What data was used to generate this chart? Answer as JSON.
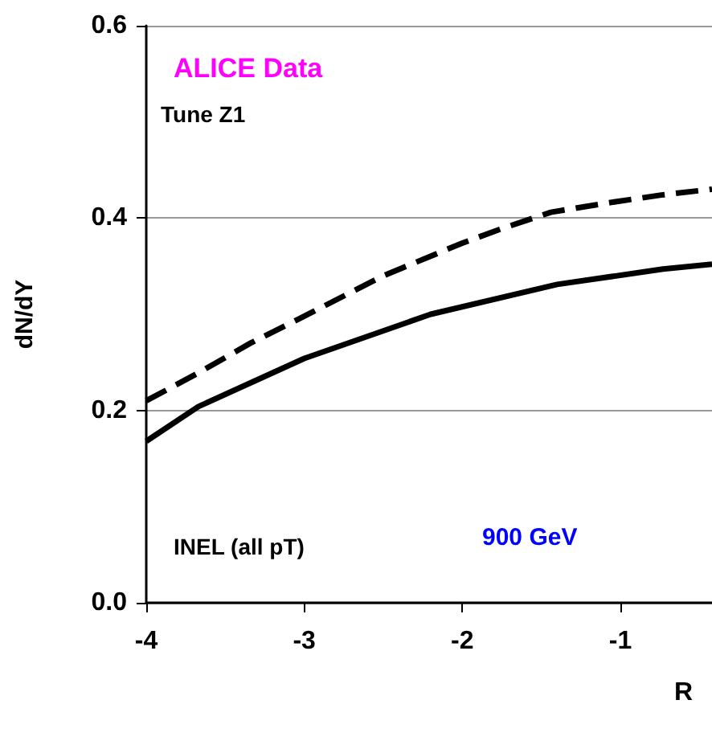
{
  "chart_data": {
    "type": "line",
    "ylabel": "dN/dY",
    "xlabel": "R",
    "x": [
      -4,
      -3.67,
      -3,
      -2.2,
      -1.4,
      -0.73,
      -0.42
    ],
    "series": [
      {
        "color": "#000000",
        "line_style": "solid",
        "values": [
          0.168,
          0.204,
          0.254,
          0.3,
          0.331,
          0.347,
          0.352
        ]
      },
      {
        "color": "#000000",
        "line_style": "dashed",
        "x": [
          -4,
          -3.67,
          -3.34,
          -3,
          -2.5,
          -2,
          -1.75,
          -1.44,
          -1.07,
          -0.74,
          -0.42
        ],
        "values": [
          0.21,
          0.239,
          0.27,
          0.298,
          0.34,
          0.374,
          0.389,
          0.406,
          0.416,
          0.424,
          0.43
        ]
      }
    ],
    "xlim": [
      -4,
      -0.42
    ],
    "xticks": [
      -4,
      -3,
      -2,
      -1
    ],
    "ylim": [
      0,
      0.6
    ],
    "yticks": [
      {
        "value": 0,
        "label": "0.0"
      },
      0.2,
      0.4,
      0.6
    ],
    "grid": "y",
    "marker": "none",
    "annotations": [
      "ALICE Data",
      "Tune Z1",
      "INEL (all pT)",
      "900 GeV"
    ]
  }
}
